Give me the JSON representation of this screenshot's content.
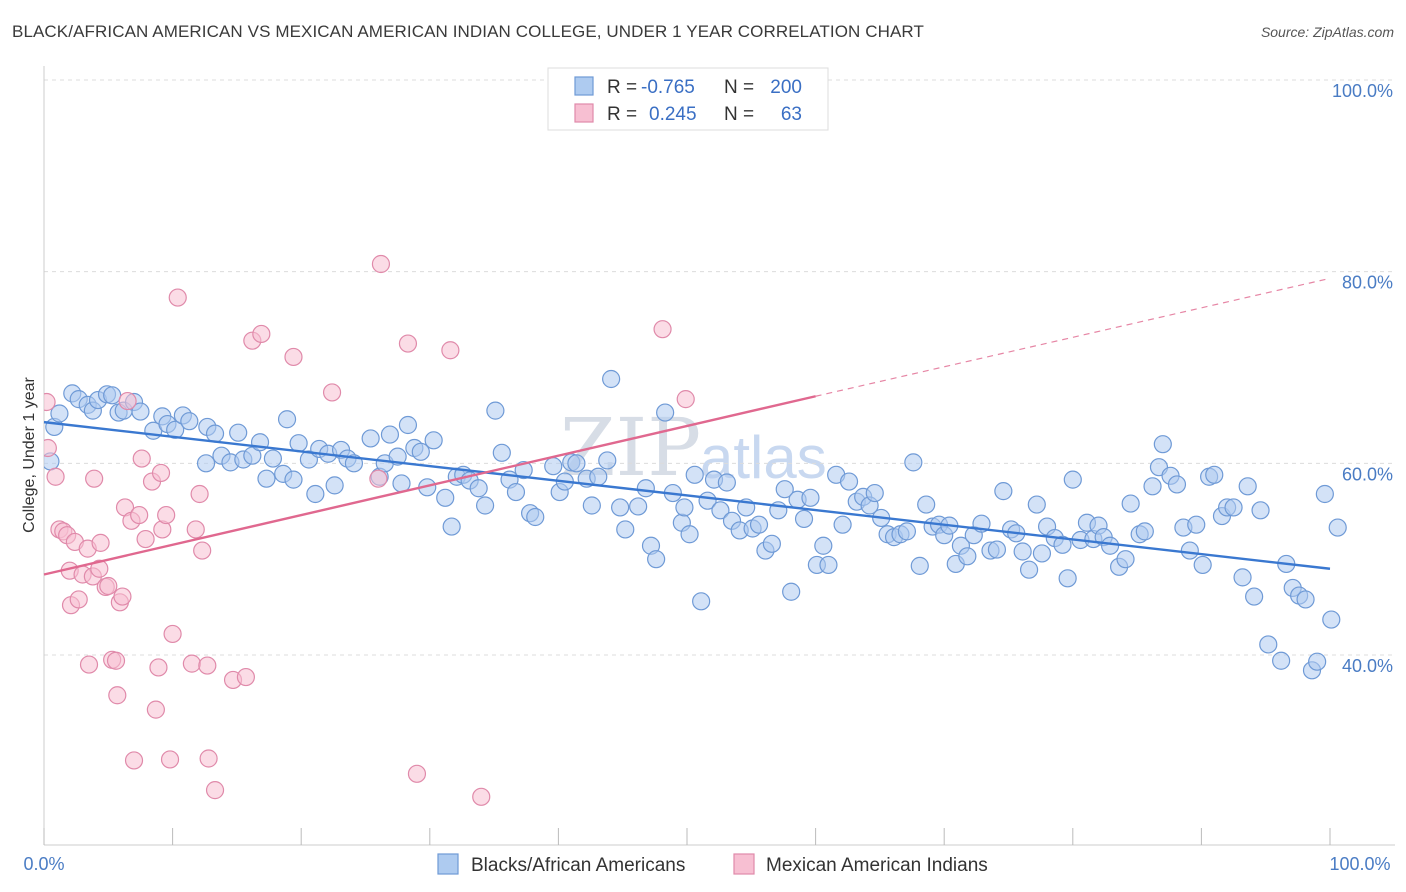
{
  "header": {
    "title": "BLACK/AFRICAN AMERICAN VS MEXICAN AMERICAN INDIAN COLLEGE, UNDER 1 YEAR CORRELATION CHART",
    "source": "Source: ZipAtlas.com"
  },
  "watermark": {
    "zip": "ZIP",
    "atlas": "atlas"
  },
  "legend": {
    "rows": [
      {
        "r_label": "R =",
        "r_value": "-0.765",
        "n_label": "N =",
        "n_value": "200",
        "color": "#aecbf0",
        "stroke": "#6f9ad6"
      },
      {
        "r_label": "R =",
        "r_value": "0.245",
        "n_label": "N =",
        "n_value": "63",
        "color": "#f7bfd2",
        "stroke": "#e08aaa"
      }
    ]
  },
  "bottom_legend": [
    {
      "label": "Blacks/African Americans",
      "color": "#aecbf0",
      "stroke": "#6f9ad6"
    },
    {
      "label": "Mexican American Indians",
      "color": "#f7bfd2",
      "stroke": "#e08aaa"
    }
  ],
  "chart_data": {
    "type": "scatter",
    "title": "BLACK/AFRICAN AMERICAN VS MEXICAN AMERICAN INDIAN COLLEGE, UNDER 1 YEAR CORRELATION CHART",
    "xlabel": "",
    "ylabel": "College, Under 1 year",
    "xlim": [
      0,
      100
    ],
    "ylim": [
      20,
      102
    ],
    "x_tick_labels": [
      "0.0%",
      "100.0%"
    ],
    "y_ticks": [
      40,
      60,
      80,
      100
    ],
    "y_tick_labels": [
      "40.0%",
      "60.0%",
      "80.0%",
      "100.0%"
    ],
    "colors": {
      "blue": "#3a78d0",
      "pink": "#e0688f"
    },
    "series": [
      {
        "name": "Blacks/African Americans",
        "color": "#aecbf0",
        "stroke": "#6f9ad6",
        "trend": {
          "x0": 0,
          "y0": 64.3,
          "x1": 100,
          "y1": 49.0
        },
        "points": [
          [
            0.5,
            60.2
          ],
          [
            0.8,
            63.8
          ],
          [
            1.2,
            65.2
          ],
          [
            2.2,
            67.3
          ],
          [
            2.7,
            66.7
          ],
          [
            3.4,
            66.1
          ],
          [
            3.8,
            65.5
          ],
          [
            4.2,
            66.6
          ],
          [
            4.9,
            67.2
          ],
          [
            5.3,
            67.1
          ],
          [
            5.8,
            65.3
          ],
          [
            6.2,
            65.5
          ],
          [
            7.0,
            66.4
          ],
          [
            7.5,
            65.4
          ],
          [
            8.5,
            63.4
          ],
          [
            9.2,
            64.9
          ],
          [
            9.6,
            64.1
          ],
          [
            10.2,
            63.5
          ],
          [
            10.8,
            65.0
          ],
          [
            11.3,
            64.4
          ],
          [
            12.6,
            60.0
          ],
          [
            12.7,
            63.8
          ],
          [
            13.3,
            63.1
          ],
          [
            13.8,
            60.8
          ],
          [
            14.5,
            60.1
          ],
          [
            15.1,
            63.2
          ],
          [
            15.5,
            60.4
          ],
          [
            16.2,
            60.8
          ],
          [
            16.8,
            62.2
          ],
          [
            17.3,
            58.4
          ],
          [
            17.8,
            60.5
          ],
          [
            18.6,
            58.9
          ],
          [
            18.9,
            64.6
          ],
          [
            19.4,
            58.3
          ],
          [
            19.8,
            62.1
          ],
          [
            20.6,
            60.4
          ],
          [
            21.1,
            56.8
          ],
          [
            21.4,
            61.5
          ],
          [
            22.1,
            61.0
          ],
          [
            22.6,
            57.7
          ],
          [
            23.1,
            61.4
          ],
          [
            23.6,
            60.5
          ],
          [
            24.1,
            60.0
          ],
          [
            25.4,
            62.6
          ],
          [
            26.1,
            58.6
          ],
          [
            26.5,
            60.0
          ],
          [
            26.9,
            63.0
          ],
          [
            27.5,
            60.7
          ],
          [
            27.8,
            57.9
          ],
          [
            28.3,
            64.0
          ],
          [
            28.8,
            61.6
          ],
          [
            29.3,
            61.2
          ],
          [
            29.8,
            57.5
          ],
          [
            30.3,
            62.4
          ],
          [
            31.2,
            56.4
          ],
          [
            31.7,
            53.4
          ],
          [
            32.1,
            58.6
          ],
          [
            32.6,
            58.8
          ],
          [
            33.1,
            58.2
          ],
          [
            33.8,
            57.4
          ],
          [
            34.3,
            55.6
          ],
          [
            35.1,
            65.5
          ],
          [
            35.6,
            61.1
          ],
          [
            36.2,
            58.3
          ],
          [
            36.7,
            57.0
          ],
          [
            37.3,
            59.3
          ],
          [
            37.8,
            54.8
          ],
          [
            38.2,
            54.4
          ],
          [
            39.6,
            59.7
          ],
          [
            40.1,
            57.0
          ],
          [
            40.5,
            58.1
          ],
          [
            41.0,
            60.1
          ],
          [
            41.4,
            60.0
          ],
          [
            42.2,
            58.4
          ],
          [
            42.6,
            55.6
          ],
          [
            43.1,
            58.6
          ],
          [
            43.8,
            60.3
          ],
          [
            44.1,
            68.8
          ],
          [
            44.8,
            55.4
          ],
          [
            45.2,
            53.1
          ],
          [
            46.2,
            55.5
          ],
          [
            46.8,
            57.4
          ],
          [
            47.2,
            51.4
          ],
          [
            47.6,
            50.0
          ],
          [
            48.3,
            65.3
          ],
          [
            48.9,
            56.9
          ],
          [
            49.6,
            53.8
          ],
          [
            49.8,
            55.4
          ],
          [
            50.2,
            52.6
          ],
          [
            50.6,
            58.8
          ],
          [
            51.1,
            45.6
          ],
          [
            51.6,
            56.1
          ],
          [
            52.1,
            58.3
          ],
          [
            52.6,
            55.1
          ],
          [
            53.1,
            58.0
          ],
          [
            53.5,
            54.0
          ],
          [
            54.1,
            53.0
          ],
          [
            54.6,
            55.4
          ],
          [
            55.1,
            53.2
          ],
          [
            55.6,
            53.6
          ],
          [
            56.1,
            50.9
          ],
          [
            56.6,
            51.6
          ],
          [
            57.1,
            55.1
          ],
          [
            57.6,
            57.3
          ],
          [
            58.1,
            46.6
          ],
          [
            58.6,
            56.2
          ],
          [
            59.1,
            54.2
          ],
          [
            59.6,
            56.4
          ],
          [
            60.1,
            49.4
          ],
          [
            60.6,
            51.4
          ],
          [
            61.0,
            49.4
          ],
          [
            61.6,
            58.8
          ],
          [
            62.1,
            53.6
          ],
          [
            62.6,
            58.1
          ],
          [
            63.2,
            56.0
          ],
          [
            63.7,
            56.5
          ],
          [
            64.2,
            55.6
          ],
          [
            64.6,
            56.9
          ],
          [
            65.1,
            54.3
          ],
          [
            65.6,
            52.6
          ],
          [
            66.1,
            52.3
          ],
          [
            66.6,
            52.6
          ],
          [
            67.1,
            52.9
          ],
          [
            67.6,
            60.1
          ],
          [
            68.1,
            49.3
          ],
          [
            68.6,
            55.7
          ],
          [
            69.1,
            53.4
          ],
          [
            69.6,
            53.6
          ],
          [
            70.0,
            52.5
          ],
          [
            70.4,
            53.5
          ],
          [
            70.9,
            49.5
          ],
          [
            71.3,
            51.4
          ],
          [
            71.8,
            50.3
          ],
          [
            72.3,
            52.5
          ],
          [
            72.9,
            53.7
          ],
          [
            73.6,
            50.9
          ],
          [
            74.1,
            51.0
          ],
          [
            74.6,
            57.1
          ],
          [
            75.2,
            53.1
          ],
          [
            75.6,
            52.7
          ],
          [
            76.1,
            50.8
          ],
          [
            76.6,
            48.9
          ],
          [
            77.2,
            55.7
          ],
          [
            77.6,
            50.6
          ],
          [
            78.0,
            53.4
          ],
          [
            78.6,
            52.2
          ],
          [
            79.2,
            51.5
          ],
          [
            79.6,
            48.0
          ],
          [
            80.0,
            58.3
          ],
          [
            80.6,
            52.0
          ],
          [
            81.1,
            53.8
          ],
          [
            81.6,
            52.1
          ],
          [
            82.0,
            53.5
          ],
          [
            82.4,
            52.3
          ],
          [
            82.9,
            51.4
          ],
          [
            83.6,
            49.2
          ],
          [
            84.1,
            50.0
          ],
          [
            84.5,
            55.8
          ],
          [
            85.2,
            52.6
          ],
          [
            85.6,
            52.9
          ],
          [
            86.2,
            57.6
          ],
          [
            86.7,
            59.6
          ],
          [
            87.0,
            62.0
          ],
          [
            87.6,
            58.7
          ],
          [
            88.1,
            57.8
          ],
          [
            88.6,
            53.3
          ],
          [
            89.1,
            50.9
          ],
          [
            89.6,
            53.6
          ],
          [
            90.1,
            49.4
          ],
          [
            90.6,
            58.6
          ],
          [
            91.0,
            58.8
          ],
          [
            91.6,
            54.5
          ],
          [
            92.0,
            55.4
          ],
          [
            92.5,
            55.4
          ],
          [
            93.2,
            48.1
          ],
          [
            93.6,
            57.6
          ],
          [
            94.1,
            46.1
          ],
          [
            94.6,
            55.1
          ],
          [
            95.2,
            41.1
          ],
          [
            96.2,
            39.4
          ],
          [
            96.6,
            49.5
          ],
          [
            97.1,
            47.0
          ],
          [
            97.6,
            46.2
          ],
          [
            98.1,
            45.8
          ],
          [
            98.6,
            38.4
          ],
          [
            99.0,
            39.3
          ],
          [
            99.6,
            56.8
          ],
          [
            100.1,
            43.7
          ],
          [
            100.6,
            53.3
          ]
        ]
      },
      {
        "name": "Mexican American Indians",
        "color": "#f7bfd2",
        "stroke": "#e08aaa",
        "trend": {
          "x0": 0,
          "y0": 48.4,
          "x1": 60,
          "y1": 67.0
        },
        "trend_dashed": {
          "x0": 60,
          "y0": 67.0,
          "x1": 100,
          "y1": 79.3
        },
        "points": [
          [
            0.2,
            66.4
          ],
          [
            0.3,
            61.6
          ],
          [
            0.9,
            58.6
          ],
          [
            1.2,
            53.1
          ],
          [
            1.5,
            52.9
          ],
          [
            1.8,
            52.5
          ],
          [
            2.0,
            48.8
          ],
          [
            2.1,
            45.2
          ],
          [
            2.4,
            51.8
          ],
          [
            2.7,
            45.8
          ],
          [
            3.0,
            48.4
          ],
          [
            3.4,
            51.1
          ],
          [
            3.5,
            39.0
          ],
          [
            3.8,
            48.2
          ],
          [
            3.9,
            58.4
          ],
          [
            4.3,
            49.0
          ],
          [
            4.4,
            51.7
          ],
          [
            4.8,
            47.1
          ],
          [
            5.0,
            47.2
          ],
          [
            5.3,
            39.5
          ],
          [
            5.6,
            39.4
          ],
          [
            5.7,
            35.8
          ],
          [
            5.9,
            45.5
          ],
          [
            6.1,
            46.1
          ],
          [
            6.3,
            55.4
          ],
          [
            6.5,
            66.5
          ],
          [
            6.8,
            54.0
          ],
          [
            7.0,
            29.0
          ],
          [
            7.4,
            54.6
          ],
          [
            7.6,
            60.5
          ],
          [
            7.9,
            52.1
          ],
          [
            8.4,
            58.1
          ],
          [
            8.7,
            34.3
          ],
          [
            8.9,
            38.7
          ],
          [
            9.1,
            59.0
          ],
          [
            9.2,
            53.1
          ],
          [
            9.5,
            54.6
          ],
          [
            9.8,
            29.1
          ],
          [
            10.0,
            42.2
          ],
          [
            10.4,
            77.3
          ],
          [
            11.5,
            39.1
          ],
          [
            11.8,
            53.1
          ],
          [
            12.1,
            56.8
          ],
          [
            12.3,
            50.9
          ],
          [
            12.7,
            38.9
          ],
          [
            12.8,
            29.2
          ],
          [
            13.3,
            25.9
          ],
          [
            14.7,
            37.4
          ],
          [
            15.7,
            37.7
          ],
          [
            16.2,
            72.8
          ],
          [
            16.9,
            73.5
          ],
          [
            19.4,
            71.1
          ],
          [
            22.4,
            67.4
          ],
          [
            26.0,
            58.4
          ],
          [
            26.2,
            80.8
          ],
          [
            28.3,
            72.5
          ],
          [
            29.0,
            27.6
          ],
          [
            31.6,
            71.8
          ],
          [
            34.0,
            25.2
          ],
          [
            48.1,
            74.0
          ],
          [
            49.9,
            66.7
          ]
        ]
      }
    ]
  }
}
